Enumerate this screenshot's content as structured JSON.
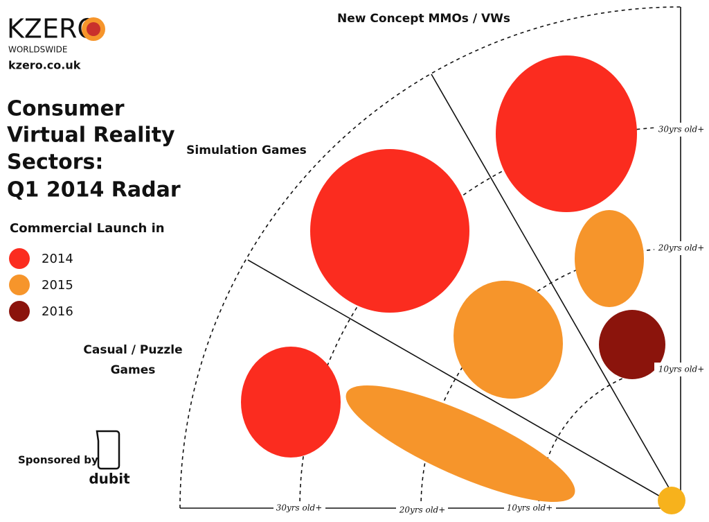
{
  "header": {
    "brand": "KZERO",
    "brand_sub": "WORLDSWIDE",
    "site": "kzero.co.uk",
    "title_lines": [
      "Consumer",
      "Virtual Reality",
      "Sectors:",
      "Q1 2014 Radar"
    ]
  },
  "legend": {
    "title": "Commercial Launch in",
    "items": [
      {
        "label": "2014",
        "color": "#fb2c1f"
      },
      {
        "label": "2015",
        "color": "#f6952b"
      },
      {
        "label": "2016",
        "color": "#8b140c"
      }
    ]
  },
  "sectors": {
    "top": "New Concept MMOs / VWs",
    "middle": "Simulation Games",
    "bottom_lines": [
      "Casual / Puzzle",
      "Games"
    ]
  },
  "rings": {
    "right": [
      "30yrs old+",
      "20yrs old+",
      "10yrs old+"
    ],
    "bottom": [
      "30yrs old+",
      "20yrs old+",
      "10yrs old+"
    ]
  },
  "sponsor": {
    "label": "Sponsored by",
    "name": "dubit"
  }
}
